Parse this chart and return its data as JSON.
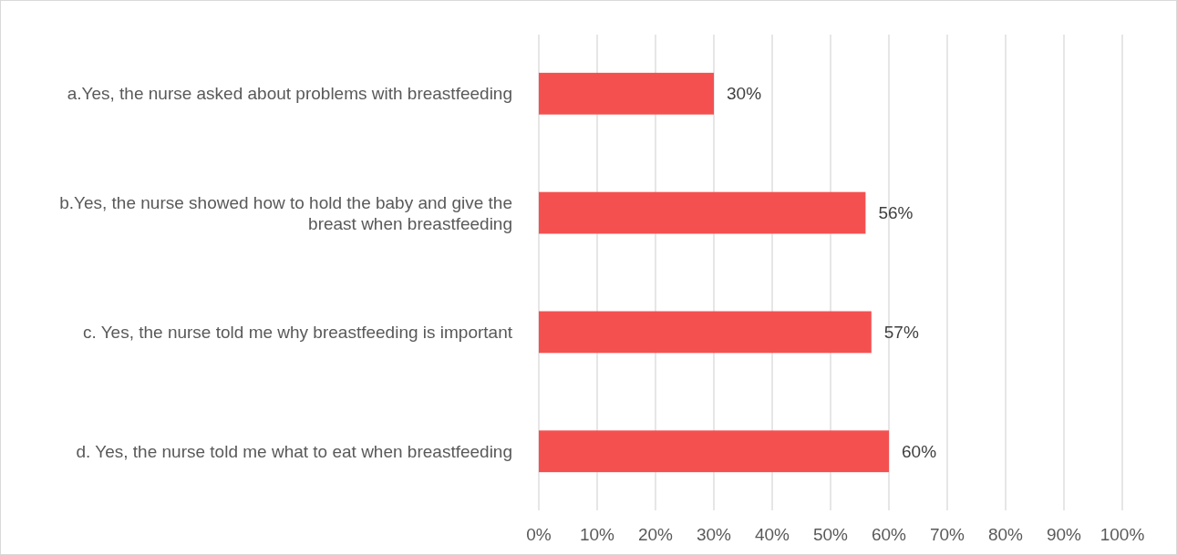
{
  "chart_data": {
    "type": "bar",
    "orientation": "horizontal",
    "categories": [
      "a.Yes, the nurse asked about problems with breastfeeding",
      "b.Yes, the nurse showed how to hold the baby and give the breast when breastfeeding",
      "c. Yes, the nurse told me why breastfeeding is important",
      "d. Yes, the nurse told me what to eat when breastfeeding"
    ],
    "values": [
      30,
      56,
      57,
      60
    ],
    "value_labels": [
      "30%",
      "56%",
      "57%",
      "60%"
    ],
    "color": "#f55050",
    "xlim": [
      0,
      100
    ],
    "xticks": [
      {
        "value": 0,
        "label": "0%"
      },
      {
        "value": 10,
        "label": "10%"
      },
      {
        "value": 20,
        "label": "20%"
      },
      {
        "value": 30,
        "label": "30%"
      },
      {
        "value": 40,
        "label": "40%"
      },
      {
        "value": 50,
        "label": "50%"
      },
      {
        "value": 60,
        "label": "60%"
      },
      {
        "value": 70,
        "label": "70%"
      },
      {
        "value": 80,
        "label": "80%"
      },
      {
        "value": 90,
        "label": "90%"
      },
      {
        "value": 100,
        "label": "100%"
      }
    ],
    "grid": "x"
  }
}
